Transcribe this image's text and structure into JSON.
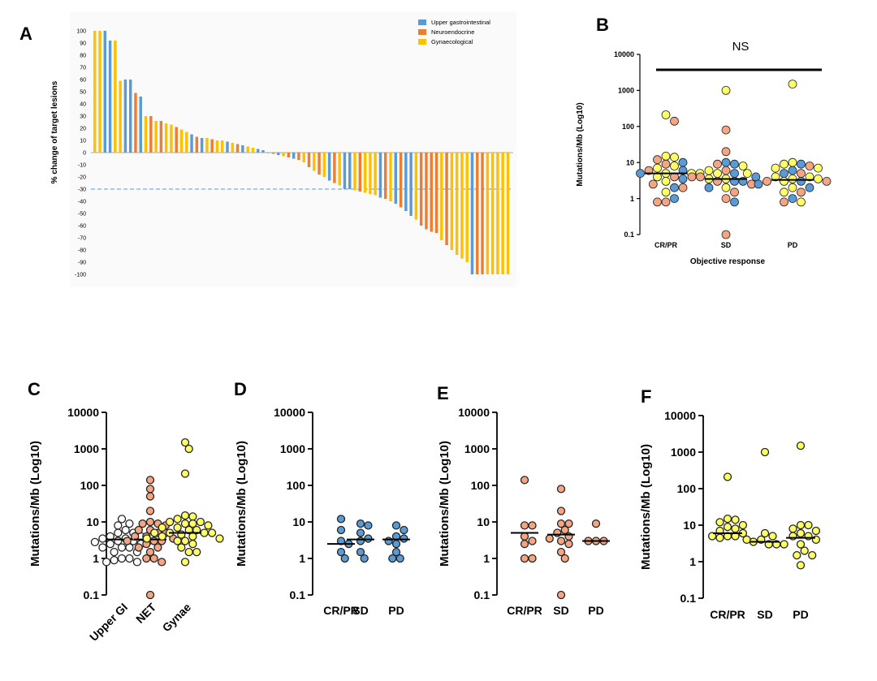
{
  "chart_data": [
    {
      "id": "A",
      "type": "bar",
      "panel_label": "A",
      "ylabel": "% change of target lesions",
      "ylim": [
        -100,
        100
      ],
      "yticks": [
        100,
        90,
        80,
        70,
        60,
        50,
        40,
        30,
        20,
        10,
        0,
        -10,
        -20,
        -30,
        -40,
        -50,
        -60,
        -70,
        -80,
        -90,
        -100
      ],
      "reference_line": -30,
      "legend": [
        {
          "name": "Upper gastrointestinal",
          "color": "#5b9bd5"
        },
        {
          "name": "Neuroendocrine",
          "color": "#ed7d31"
        },
        {
          "name": "Gynaecological",
          "color": "#ffc000"
        }
      ],
      "bars": [
        {
          "value": 100,
          "group": "Gynaecological"
        },
        {
          "value": 100,
          "group": "Gynaecological"
        },
        {
          "value": 100,
          "group": "Upper gastrointestinal"
        },
        {
          "value": 92,
          "group": "Upper gastrointestinal"
        },
        {
          "value": 92,
          "group": "Gynaecological"
        },
        {
          "value": 59,
          "group": "Gynaecological"
        },
        {
          "value": 60,
          "group": "Upper gastrointestinal"
        },
        {
          "value": 60,
          "group": "Upper gastrointestinal"
        },
        {
          "value": 49,
          "group": "Neuroendocrine"
        },
        {
          "value": 46,
          "group": "Upper gastrointestinal"
        },
        {
          "value": 30,
          "group": "Gynaecological"
        },
        {
          "value": 30,
          "group": "Neuroendocrine"
        },
        {
          "value": 26,
          "group": "Gynaecological"
        },
        {
          "value": 26,
          "group": "Neuroendocrine"
        },
        {
          "value": 24,
          "group": "Gynaecological"
        },
        {
          "value": 23,
          "group": "Gynaecological"
        },
        {
          "value": 21,
          "group": "Neuroendocrine"
        },
        {
          "value": 19,
          "group": "Gynaecological"
        },
        {
          "value": 17,
          "group": "Gynaecological"
        },
        {
          "value": 15,
          "group": "Upper gastrointestinal"
        },
        {
          "value": 13,
          "group": "Neuroendocrine"
        },
        {
          "value": 12,
          "group": "Upper gastrointestinal"
        },
        {
          "value": 12,
          "group": "Gynaecological"
        },
        {
          "value": 11,
          "group": "Neuroendocrine"
        },
        {
          "value": 10,
          "group": "Gynaecological"
        },
        {
          "value": 10,
          "group": "Gynaecological"
        },
        {
          "value": 9,
          "group": "Upper gastrointestinal"
        },
        {
          "value": 8,
          "group": "Gynaecological"
        },
        {
          "value": 7,
          "group": "Neuroendocrine"
        },
        {
          "value": 6,
          "group": "Upper gastrointestinal"
        },
        {
          "value": 5,
          "group": "Gynaecological"
        },
        {
          "value": 4,
          "group": "Gynaecological"
        },
        {
          "value": 3,
          "group": "Upper gastrointestinal"
        },
        {
          "value": 2,
          "group": "Upper gastrointestinal"
        },
        {
          "value": 0,
          "group": "Upper gastrointestinal"
        },
        {
          "value": -1,
          "group": "Neuroendocrine"
        },
        {
          "value": -2,
          "group": "Upper gastrointestinal"
        },
        {
          "value": -3,
          "group": "Gynaecological"
        },
        {
          "value": -4,
          "group": "Neuroendocrine"
        },
        {
          "value": -5,
          "group": "Upper gastrointestinal"
        },
        {
          "value": -6,
          "group": "Neuroendocrine"
        },
        {
          "value": -8,
          "group": "Gynaecological"
        },
        {
          "value": -12,
          "group": "Neuroendocrine"
        },
        {
          "value": -15,
          "group": "Gynaecological"
        },
        {
          "value": -18,
          "group": "Neuroendocrine"
        },
        {
          "value": -20,
          "group": "Gynaecological"
        },
        {
          "value": -23,
          "group": "Upper gastrointestinal"
        },
        {
          "value": -25,
          "group": "Neuroendocrine"
        },
        {
          "value": -27,
          "group": "Gynaecological"
        },
        {
          "value": -30,
          "group": "Upper gastrointestinal"
        },
        {
          "value": -30,
          "group": "Upper gastrointestinal"
        },
        {
          "value": -31,
          "group": "Gynaecological"
        },
        {
          "value": -32,
          "group": "Neuroendocrine"
        },
        {
          "value": -33,
          "group": "Gynaecological"
        },
        {
          "value": -34,
          "group": "Gynaecological"
        },
        {
          "value": -35,
          "group": "Gynaecological"
        },
        {
          "value": -37,
          "group": "Upper gastrointestinal"
        },
        {
          "value": -38,
          "group": "Neuroendocrine"
        },
        {
          "value": -40,
          "group": "Gynaecological"
        },
        {
          "value": -42,
          "group": "Upper gastrointestinal"
        },
        {
          "value": -45,
          "group": "Neuroendocrine"
        },
        {
          "value": -48,
          "group": "Upper gastrointestinal"
        },
        {
          "value": -52,
          "group": "Upper gastrointestinal"
        },
        {
          "value": -55,
          "group": "Gynaecological"
        },
        {
          "value": -60,
          "group": "Neuroendocrine"
        },
        {
          "value": -63,
          "group": "Neuroendocrine"
        },
        {
          "value": -65,
          "group": "Neuroendocrine"
        },
        {
          "value": -66,
          "group": "Neuroendocrine"
        },
        {
          "value": -72,
          "group": "Gynaecological"
        },
        {
          "value": -76,
          "group": "Neuroendocrine"
        },
        {
          "value": -80,
          "group": "Gynaecological"
        },
        {
          "value": -84,
          "group": "Gynaecological"
        },
        {
          "value": -87,
          "group": "Gynaecological"
        },
        {
          "value": -90,
          "group": "Gynaecological"
        },
        {
          "value": -100,
          "group": "Upper gastrointestinal"
        },
        {
          "value": -100,
          "group": "Neuroendocrine"
        },
        {
          "value": -100,
          "group": "Neuroendocrine"
        },
        {
          "value": -100,
          "group": "Gynaecological"
        },
        {
          "value": -100,
          "group": "Gynaecological"
        },
        {
          "value": -100,
          "group": "Gynaecological"
        },
        {
          "value": -100,
          "group": "Gynaecological"
        },
        {
          "value": -100,
          "group": "Gynaecological"
        }
      ]
    },
    {
      "id": "B",
      "type": "scatter",
      "panel_label": "B",
      "annotation": "NS",
      "ylabel": "Mutations/Mb (Log10)",
      "xlabel": "Objective response",
      "yscale": "log",
      "ylim": [
        0.1,
        10000
      ],
      "yticks": [
        "0.1",
        "1",
        "10",
        "100",
        "1000",
        "10000"
      ],
      "colors": {
        "Upper GI": "#5b9bd5",
        "NET": "#f4a582",
        "Gynae": "#ffff66"
      },
      "groups": [
        {
          "label": "CR/PR",
          "median": 5,
          "points": [
            [
              210,
              "Gynae"
            ],
            [
              140,
              "NET"
            ],
            [
              15,
              "Gynae"
            ],
            [
              14,
              "Gynae"
            ],
            [
              12,
              "NET"
            ],
            [
              10,
              "Upper GI"
            ],
            [
              9,
              "NET"
            ],
            [
              8,
              "Gynae"
            ],
            [
              7,
              "Gynae"
            ],
            [
              6,
              "Upper GI"
            ],
            [
              6,
              "NET"
            ],
            [
              5,
              "Gynae"
            ],
            [
              5,
              "Gynae"
            ],
            [
              5,
              "Upper GI"
            ],
            [
              5,
              "Gynae"
            ],
            [
              4,
              "NET"
            ],
            [
              4,
              "Gynae"
            ],
            [
              3.5,
              "Upper GI"
            ],
            [
              3,
              "Gynae"
            ],
            [
              2.5,
              "NET"
            ],
            [
              2,
              "Upper GI"
            ],
            [
              2,
              "NET"
            ],
            [
              1.5,
              "Gynae"
            ],
            [
              1,
              "Upper GI"
            ],
            [
              0.8,
              "NET"
            ],
            [
              0.8,
              "NET"
            ]
          ]
        },
        {
          "label": "SD",
          "median": 3.5,
          "points": [
            [
              1000,
              "Gynae"
            ],
            [
              80,
              "NET"
            ],
            [
              20,
              "NET"
            ],
            [
              10,
              "Upper GI"
            ],
            [
              9,
              "Upper GI"
            ],
            [
              9,
              "NET"
            ],
            [
              8,
              "Gynae"
            ],
            [
              6,
              "NET"
            ],
            [
              6,
              "Gynae"
            ],
            [
              5,
              "Upper GI"
            ],
            [
              5,
              "Gynae"
            ],
            [
              5,
              "Gynae"
            ],
            [
              4,
              "NET"
            ],
            [
              4,
              "Upper GI"
            ],
            [
              4,
              "NET"
            ],
            [
              3.5,
              "Gynae"
            ],
            [
              3.5,
              "Gynae"
            ],
            [
              3,
              "Upper GI"
            ],
            [
              3,
              "NET"
            ],
            [
              3,
              "Upper GI"
            ],
            [
              2.5,
              "NET"
            ],
            [
              2,
              "Gynae"
            ],
            [
              2,
              "Upper GI"
            ],
            [
              1.5,
              "NET"
            ],
            [
              1,
              "NET"
            ],
            [
              0.8,
              "Upper GI"
            ],
            [
              0.1,
              "NET"
            ]
          ]
        },
        {
          "label": "PD",
          "median": 3.3,
          "points": [
            [
              1500,
              "Gynae"
            ],
            [
              10,
              "Gynae"
            ],
            [
              9,
              "Upper GI"
            ],
            [
              9,
              "Gynae"
            ],
            [
              8,
              "NET"
            ],
            [
              7,
              "Gynae"
            ],
            [
              7,
              "Gynae"
            ],
            [
              6,
              "Upper GI"
            ],
            [
              5,
              "NET"
            ],
            [
              5,
              "Upper GI"
            ],
            [
              4,
              "Gynae"
            ],
            [
              4,
              "Gynae"
            ],
            [
              3.5,
              "Gynae"
            ],
            [
              3.5,
              "Gynae"
            ],
            [
              3,
              "Upper GI"
            ],
            [
              3,
              "Gynae"
            ],
            [
              3,
              "NET"
            ],
            [
              3,
              "NET"
            ],
            [
              2.5,
              "Upper GI"
            ],
            [
              2,
              "Gynae"
            ],
            [
              2,
              "Upper GI"
            ],
            [
              1.5,
              "NET"
            ],
            [
              1.5,
              "Gynae"
            ],
            [
              1,
              "Upper GI"
            ],
            [
              0.8,
              "Gynae"
            ],
            [
              0.8,
              "NET"
            ]
          ]
        }
      ]
    },
    {
      "id": "C",
      "type": "scatter",
      "panel_label": "C",
      "ylabel": "Mutations/Mb (Log10)",
      "yscale": "log",
      "ylim": [
        0.1,
        10000
      ],
      "yticks": [
        "0.1",
        "1",
        "10",
        "100",
        "1000",
        "10000"
      ],
      "groups": [
        {
          "label": "Upper GI",
          "color": "#ffffff",
          "median": 3.3,
          "points": [
            12,
            9,
            8,
            6,
            5,
            5,
            4,
            4,
            3.5,
            3.5,
            3,
            3,
            3,
            2.8,
            2.5,
            2.5,
            2,
            2,
            2,
            1.5,
            1.5,
            1,
            1,
            0.9,
            0.8,
            0.8
          ]
        },
        {
          "label": "NET",
          "color": "#f4a582",
          "median": 3.3,
          "points": [
            140,
            80,
            50,
            20,
            10,
            9,
            9,
            8,
            6,
            6,
            5,
            5,
            4,
            4,
            3.5,
            3,
            3,
            3,
            2.5,
            2,
            2,
            1.5,
            1,
            1,
            0.8,
            0.1
          ]
        },
        {
          "label": "Gynae",
          "color": "#ffff66",
          "median": 5,
          "points": [
            1500,
            1000,
            210,
            15,
            14,
            12,
            10,
            10,
            9,
            9,
            8,
            7,
            7,
            6,
            6,
            5,
            5,
            5,
            5,
            4.5,
            4,
            4,
            3.5,
            3.5,
            3,
            3,
            2.5,
            2,
            1.5,
            1.5,
            0.8
          ]
        }
      ]
    },
    {
      "id": "D",
      "type": "scatter",
      "panel_label": "D",
      "ylabel": "Mutations/Mb (Log10)",
      "yscale": "log",
      "ylim": [
        0.1,
        10000
      ],
      "yticks": [
        "0.1",
        "1",
        "10",
        "100",
        "1000",
        "10000"
      ],
      "color": "#5b9bd5",
      "groups": [
        {
          "label": "CR/PR",
          "median": 2.5,
          "points": [
            12,
            6,
            3,
            2.5,
            1.5,
            1
          ]
        },
        {
          "label": "SD",
          "median": 3.3,
          "points": [
            9,
            8,
            5,
            3.5,
            3,
            1.5,
            1
          ]
        },
        {
          "label": "PD",
          "median": 3.3,
          "points": [
            8,
            6,
            4,
            3.5,
            3,
            2.5,
            1.5,
            1,
            1
          ]
        }
      ]
    },
    {
      "id": "E",
      "type": "scatter",
      "panel_label": "E",
      "ylabel": "Mutations/Mb (Log10)",
      "yscale": "log",
      "ylim": [
        0.1,
        10000
      ],
      "yticks": [
        "0.1",
        "1",
        "10",
        "100",
        "1000",
        "10000"
      ],
      "color": "#f4a582",
      "groups": [
        {
          "label": "CR/PR",
          "median": 5,
          "points": [
            140,
            8,
            8,
            4,
            3,
            2.5,
            1,
            1
          ]
        },
        {
          "label": "SD",
          "median": 4.5,
          "points": [
            80,
            20,
            9,
            9,
            6,
            5,
            4,
            3.5,
            3,
            2.5,
            1.5,
            1,
            0.1
          ]
        },
        {
          "label": "PD",
          "median": 3,
          "points": [
            9,
            3,
            3,
            3
          ]
        }
      ]
    },
    {
      "id": "F",
      "type": "scatter",
      "panel_label": "F",
      "ylabel": "Mutations/Mb (Log10)",
      "yscale": "log",
      "ylim": [
        0.1,
        10000
      ],
      "yticks": [
        "0.1",
        "1",
        "10",
        "100",
        "1000",
        "10000"
      ],
      "color": "#ffff66",
      "groups": [
        {
          "label": "CR/PR",
          "median": 6,
          "points": [
            210,
            15,
            14,
            12,
            10,
            9,
            8,
            7,
            6,
            5,
            5,
            5,
            4.5,
            4
          ]
        },
        {
          "label": "SD",
          "median": 3.5,
          "points": [
            1000,
            6,
            5,
            4,
            3.5,
            3,
            3,
            3
          ]
        },
        {
          "label": "PD",
          "median": 4.5,
          "points": [
            1500,
            10,
            10,
            8,
            7,
            6,
            5,
            5,
            4,
            3,
            2,
            1.5,
            1.5,
            0.8
          ]
        }
      ]
    }
  ]
}
